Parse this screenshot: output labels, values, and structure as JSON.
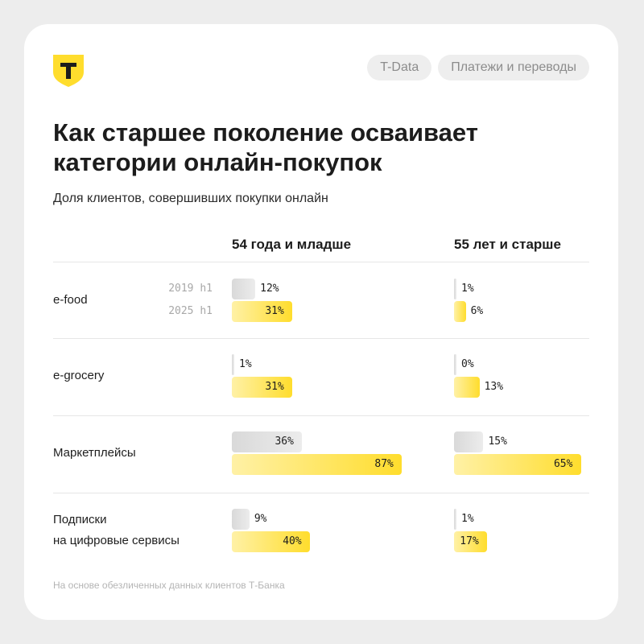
{
  "header": {
    "tags": [
      "T-Data",
      "Платежи и переводы"
    ]
  },
  "title_lines": [
    "Как старшее поколение осваивает",
    "категории онлайн-покупок"
  ],
  "subtitle": "Доля клиентов, совершивших покупки онлайн",
  "footer": "На основе обезличенных данных клиентов Т-Банка",
  "colors": {
    "brand": "#ffdd2d",
    "bar_2019": "#dcdcdc",
    "bar_2025": "#ffdd2d"
  },
  "chart_data": {
    "type": "bar",
    "groups": [
      "54 года и младше",
      "55 лет и старше"
    ],
    "categories": [
      [
        "e-food"
      ],
      [
        "e-grocery"
      ],
      [
        "Маркетплейсы"
      ],
      [
        "Подписки",
        "на цифровые сервисы"
      ]
    ],
    "series": [
      {
        "name": "2019 h1",
        "values": [
          [
            12,
            1
          ],
          [
            1,
            0
          ],
          [
            36,
            15
          ],
          [
            9,
            1
          ]
        ]
      },
      {
        "name": "2025 h1",
        "values": [
          [
            31,
            6
          ],
          [
            31,
            13
          ],
          [
            87,
            65
          ],
          [
            40,
            17
          ]
        ]
      }
    ],
    "unit": "%",
    "xlim": [
      0,
      100
    ]
  }
}
